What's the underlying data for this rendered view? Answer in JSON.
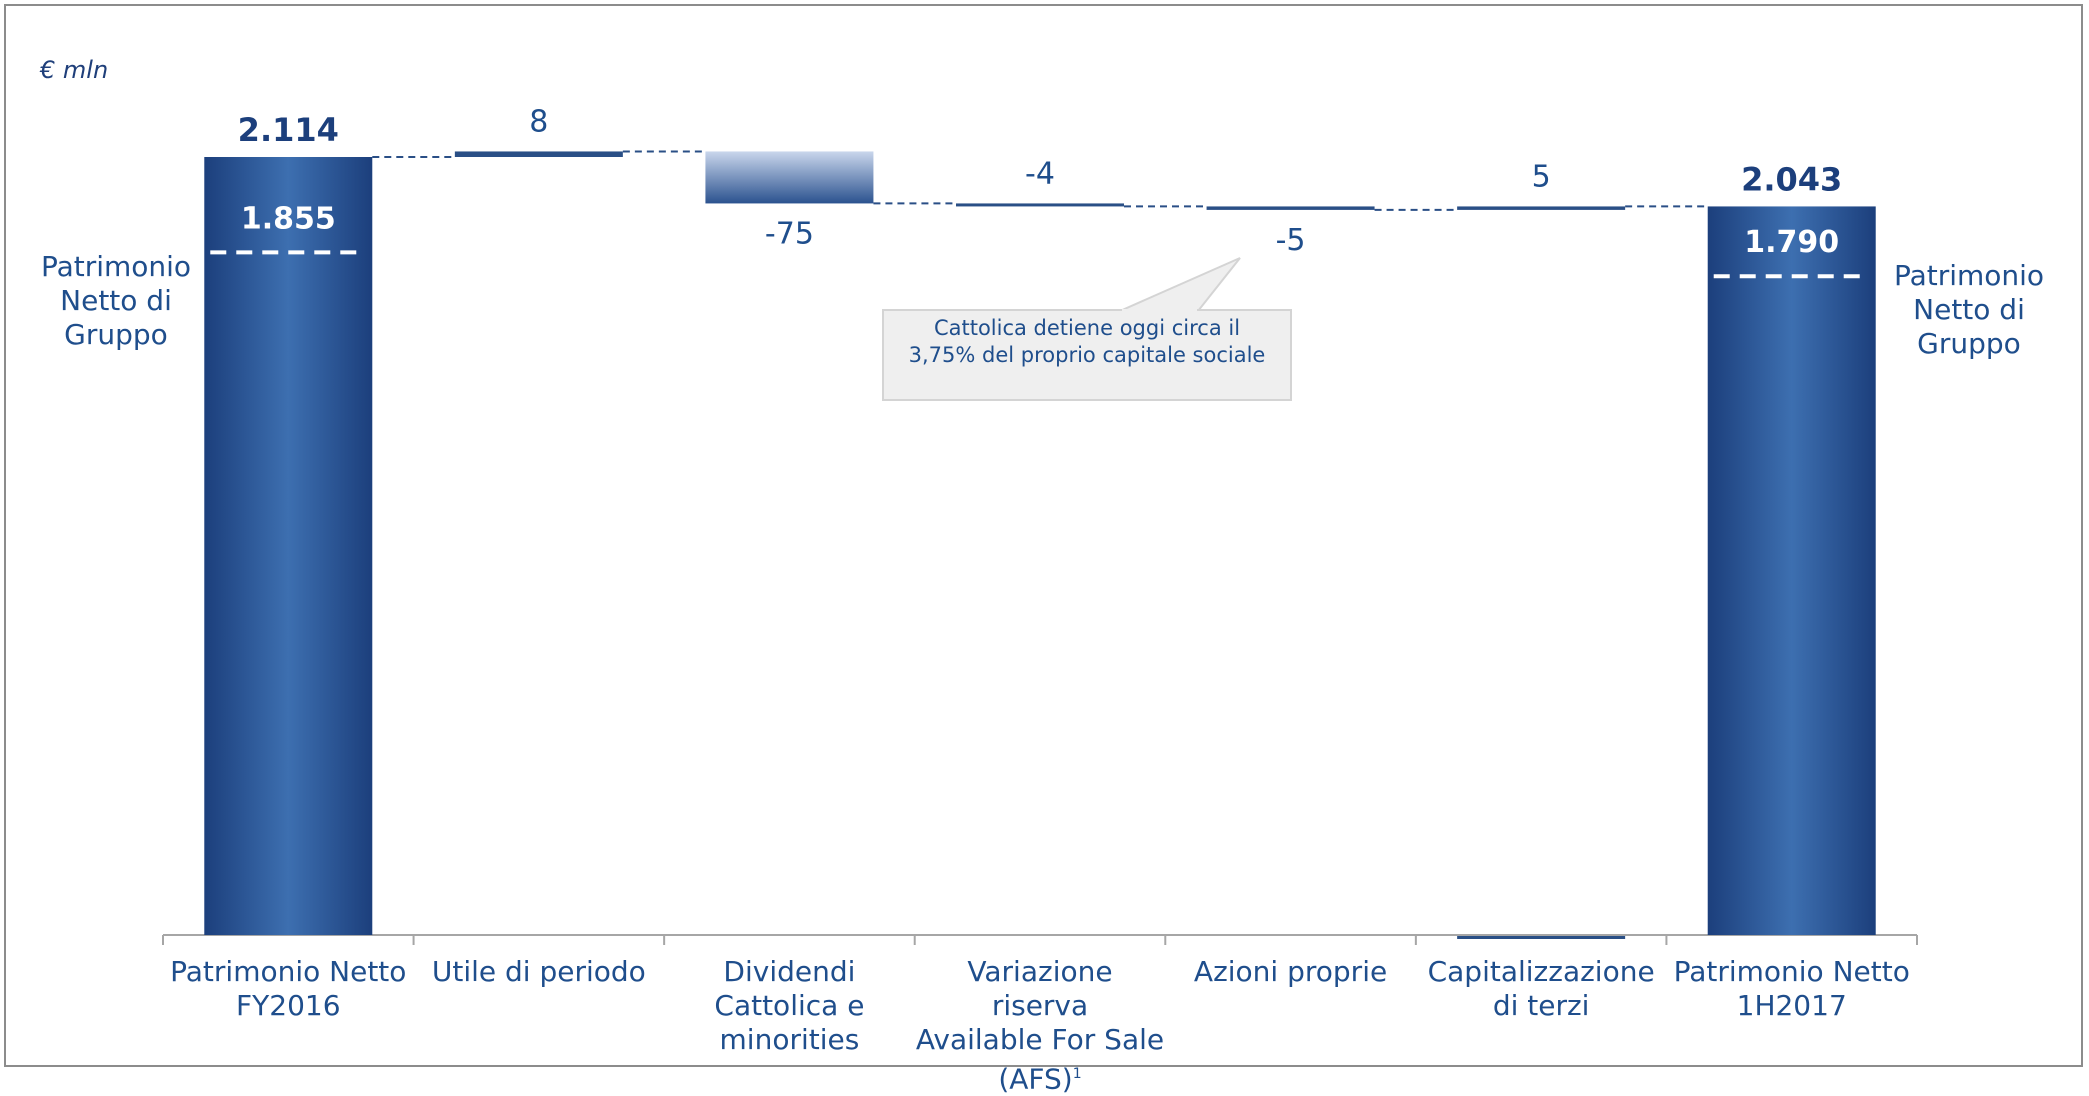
{
  "chart_data": {
    "type": "bar",
    "subtype": "waterfall",
    "unit_label": "€ mln",
    "categories": [
      "Patrimonio Netto\nFY2016",
      "Utile di periodo",
      "Dividendi\nCattolica e\nminorities",
      "Variazione riserva\nAvailable For Sale\n(AFS)",
      "Azioni proprie",
      "Capitalizzazione\ndi terzi",
      "Patrimonio Netto\n1H2017"
    ],
    "category_footnote": "1",
    "steps": [
      {
        "kind": "total",
        "value": 2114,
        "label": "2.114",
        "inner_value": 1855,
        "inner_label": "1.855"
      },
      {
        "kind": "delta",
        "value": 8,
        "label": "8"
      },
      {
        "kind": "delta",
        "value": -75,
        "label": "-75"
      },
      {
        "kind": "delta",
        "value": -4,
        "label": "-4"
      },
      {
        "kind": "delta",
        "value": -5,
        "label": "-5"
      },
      {
        "kind": "delta",
        "value": 5,
        "label": "5"
      },
      {
        "kind": "total",
        "value": 2043,
        "label": "2.043",
        "inner_value": 1790,
        "inner_label": "1.790"
      }
    ],
    "side_labels": [
      "Patrimonio\nNetto di\nGruppo",
      "Patrimonio\nNetto di\nGruppo"
    ],
    "annotation": "Cattolica detiene oggi circa il 3,75% del proprio capitale sociale",
    "colors": {
      "total_dark": "#1c3f7c",
      "total_light": "#3d6fb0",
      "text": "#1f4e8c",
      "connector": "#2a4f86"
    },
    "ylim": [
      0,
      2150
    ],
    "grid": false,
    "legend": "none"
  }
}
